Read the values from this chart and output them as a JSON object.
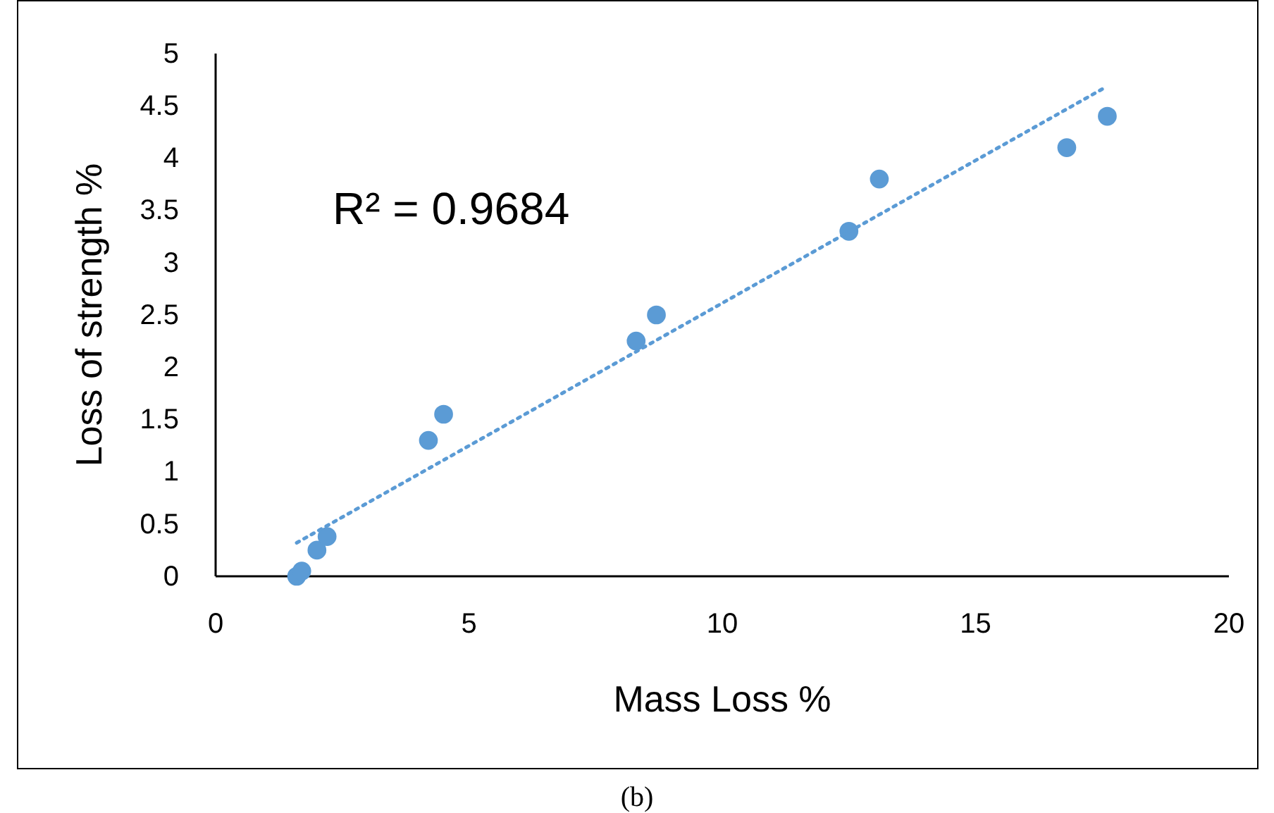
{
  "chart_data": {
    "type": "scatter",
    "xlabel": "Mass Loss %",
    "ylabel": "Loss of strength %",
    "xlim": [
      0,
      20
    ],
    "xticks": [
      0,
      5,
      10,
      15,
      20
    ],
    "ylim": [
      0,
      5
    ],
    "yticks": [
      0,
      {
        "value": 0.5,
        "label": "0.5"
      },
      1,
      {
        "value": 1.5,
        "label": "1.5"
      },
      2,
      {
        "value": 2.5,
        "label": "2.5"
      },
      3,
      {
        "value": 3.5,
        "label": "3.5"
      },
      4,
      {
        "value": 4.5,
        "label": "4.5"
      },
      5
    ],
    "grid": false,
    "marker": "circle",
    "annotations": [
      "R² = 0.9684",
      "(b)"
    ],
    "series": [
      {
        "color": "#5b9bd5",
        "x": [
          1.6,
          1.7,
          2.0,
          2.2,
          4.2,
          4.5,
          8.3,
          8.7,
          12.5,
          13.1,
          16.8,
          17.6
        ],
        "values": [
          0,
          0.05,
          0.25,
          0.38,
          1.3,
          1.55,
          2.25,
          2.5,
          3.3,
          3.8,
          4.1,
          4.4
        ]
      },
      {
        "type": "line",
        "color": "#5b9bd5",
        "line_style": "dotted",
        "marker": "none",
        "x": [
          1.6,
          17.5
        ],
        "values": [
          0.32,
          4.66
        ]
      }
    ]
  }
}
